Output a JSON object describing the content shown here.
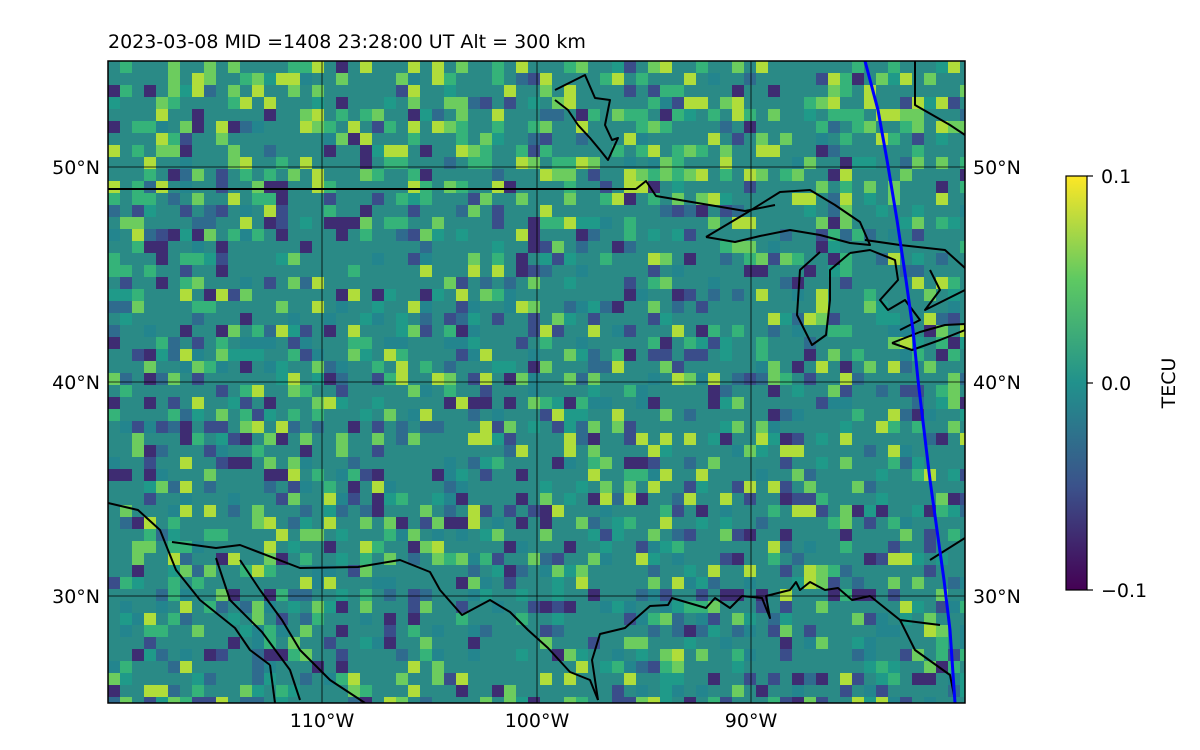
{
  "title": "2023-03-08  MID =1408    23:28:00  UT  Alt = 300 km",
  "map": {
    "lat_ticks_left": [
      "50°N",
      "40°N",
      "30°N"
    ],
    "lat_ticks_right": [
      "50°N",
      "40°N",
      "30°N"
    ],
    "lon_ticks": [
      "110°W",
      "100°W",
      "90°W"
    ],
    "field_colormap": "viridis"
  },
  "colorbar": {
    "label": "TECU",
    "ticks": [
      "0.1",
      "0.0",
      "−0.1"
    ],
    "colormap": [
      "#440154",
      "#3b528b",
      "#21918c",
      "#5ec962",
      "#fde725"
    ]
  },
  "colors": {
    "terminator_line": "#0000ff",
    "coastline": "#000000",
    "gridline": "#000000"
  }
}
